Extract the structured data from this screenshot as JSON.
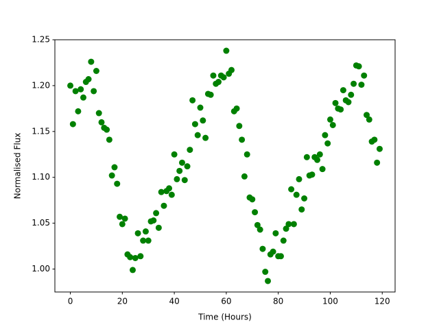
{
  "chart_data": {
    "type": "scatter",
    "xlabel": "Time (Hours)",
    "ylabel": "Normalised Flux",
    "x": [
      0,
      1,
      2,
      3,
      4,
      5,
      6,
      7,
      8,
      9,
      10,
      11,
      12,
      13,
      14,
      15,
      16,
      17,
      18,
      19,
      20,
      21,
      22,
      23,
      24,
      25,
      26,
      27,
      28,
      29,
      30,
      31,
      32,
      33,
      34,
      35,
      36,
      37,
      38,
      39,
      40,
      41,
      42,
      43,
      44,
      45,
      46,
      47,
      48,
      49,
      50,
      51,
      52,
      53,
      54,
      55,
      56,
      57,
      58,
      59,
      60,
      61,
      62,
      63,
      64,
      65,
      66,
      67,
      68,
      69,
      70,
      71,
      72,
      73,
      74,
      75,
      76,
      77,
      78,
      79,
      80,
      81,
      82,
      83,
      84,
      85,
      86,
      87,
      88,
      89,
      90,
      91,
      92,
      93,
      94,
      95,
      96,
      97,
      98,
      99,
      100,
      101,
      102,
      103,
      104,
      105,
      106,
      107,
      108,
      109,
      110,
      111,
      112,
      113,
      114,
      115,
      116,
      117,
      118,
      119
    ],
    "series": [
      {
        "color": "#008000",
        "values": [
          1.2,
          1.158,
          1.194,
          1.172,
          1.196,
          1.187,
          1.204,
          1.207,
          1.226,
          1.194,
          1.216,
          1.17,
          1.16,
          1.154,
          1.152,
          1.141,
          1.102,
          1.111,
          1.093,
          1.057,
          1.049,
          1.055,
          1.016,
          1.013,
          0.999,
          1.012,
          1.039,
          1.014,
          1.031,
          1.041,
          1.031,
          1.052,
          1.053,
          1.061,
          1.045,
          1.084,
          1.069,
          1.085,
          1.088,
          1.081,
          1.125,
          1.098,
          1.107,
          1.116,
          1.097,
          1.112,
          1.13,
          1.184,
          1.158,
          1.146,
          1.176,
          1.162,
          1.143,
          1.191,
          1.19,
          1.211,
          1.202,
          1.204,
          1.211,
          1.209,
          1.238,
          1.213,
          1.217,
          1.172,
          1.175,
          1.156,
          1.141,
          1.101,
          1.125,
          1.078,
          1.076,
          1.062,
          1.048,
          1.043,
          1.022,
          0.997,
          0.987,
          1.016,
          1.019,
          1.039,
          1.014,
          1.014,
          1.031,
          1.044,
          1.049,
          1.087,
          1.049,
          1.081,
          1.098,
          1.065,
          1.077,
          1.122,
          1.102,
          1.103,
          1.122,
          1.119,
          1.125,
          1.109,
          1.146,
          1.137,
          1.163,
          1.157,
          1.181,
          1.175,
          1.174,
          1.195,
          1.184,
          1.182,
          1.19,
          1.202,
          1.222,
          1.221,
          1.201,
          1.211,
          1.168,
          1.163,
          1.139,
          1.141,
          1.116,
          1.131
        ]
      }
    ],
    "xlim": [
      -5.95,
      124.95
    ],
    "ylim": [
      0.975,
      1.25
    ],
    "xticks": [
      0,
      20,
      40,
      60,
      80,
      100,
      120
    ],
    "yticks": [
      {
        "value": 1,
        "label": "1.00"
      },
      1.05,
      {
        "value": 1.1,
        "label": "1.10"
      },
      1.15,
      {
        "value": 1.2,
        "label": "1.20"
      },
      1.25
    ]
  }
}
